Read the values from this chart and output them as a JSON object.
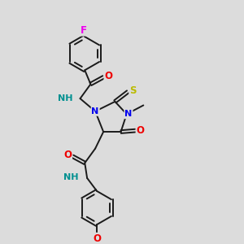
{
  "background_color": "#dcdcdc",
  "bond_color": "#1a1a1a",
  "atom_colors": {
    "F": "#ee00ee",
    "O": "#ee0000",
    "N": "#0000ee",
    "S": "#bbbb00",
    "C": "#1a1a1a",
    "H": "#009090"
  },
  "figsize": [
    3.0,
    3.0
  ],
  "dpi": 100,
  "xlim": [
    0,
    10
  ],
  "ylim": [
    0,
    10
  ]
}
